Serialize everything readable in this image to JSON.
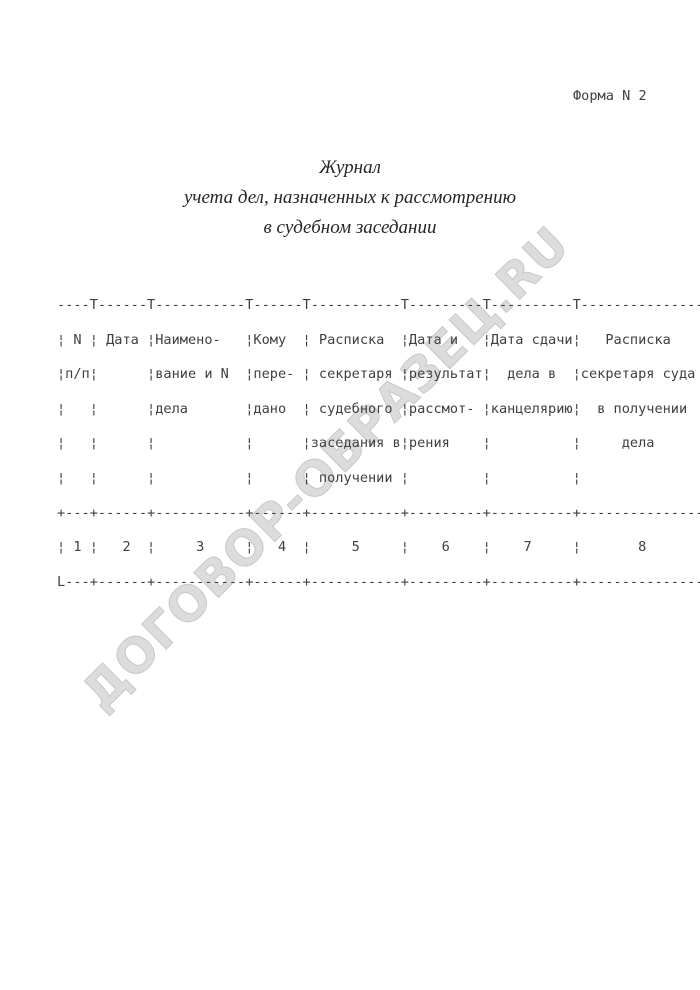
{
  "page": {
    "form_number": "Форма N 2",
    "title": {
      "lines": [
        "Журнал",
        "учета дел, назначенных к рассмотрению",
        "в судебном заседании"
      ]
    }
  },
  "table": {
    "columns": [
      {
        "num": "1",
        "label": "N п/п"
      },
      {
        "num": "2",
        "label": "Дата"
      },
      {
        "num": "3",
        "label": "Наименование и N дела"
      },
      {
        "num": "4",
        "label": "Кому передано"
      },
      {
        "num": "5",
        "label": "Расписка секретаря судебного заседания в получении"
      },
      {
        "num": "6",
        "label": "Дата и результат рассмотрения"
      },
      {
        "num": "7",
        "label": "Дата сдачи дела в канцелярию"
      },
      {
        "num": "8",
        "label": "Расписка секретаря суда в получении дела"
      }
    ],
    "ascii_lines": [
      "----T------T-----------T------T-----------T---------T----------T------------------",
      "¦ N ¦ Дата ¦Наимено-   ¦Кому  ¦ Расписка  ¦Дата и   ¦Дата сдачи¦   Расписка",
      "¦п/п¦      ¦вание и N  ¦пере- ¦ секретаря ¦результат¦  дела в  ¦секретаря суда",
      "¦   ¦      ¦дела       ¦дано  ¦ судебного ¦рассмот- ¦канцелярию¦  в получении",
      "¦   ¦      ¦           ¦      ¦заседания в¦рения    ¦          ¦     дела",
      "¦   ¦      ¦           ¦      ¦ получении ¦         ¦          ¦",
      "+---+------+-----------+------+-----------+---------+----------+------------------",
      "¦ 1 ¦   2  ¦     3     ¦   4  ¦     5     ¦    6    ¦    7     ¦       8",
      "L---+------+-----------+------+-----------+---------+----------+------------------"
    ]
  },
  "watermark": {
    "text": "ДОГОВОР-ОБРАЗЕЦ.RU",
    "color": "#dcdcdc"
  },
  "colors": {
    "background": "#ffffff",
    "body_text": "#404040",
    "title_text": "#262626"
  }
}
